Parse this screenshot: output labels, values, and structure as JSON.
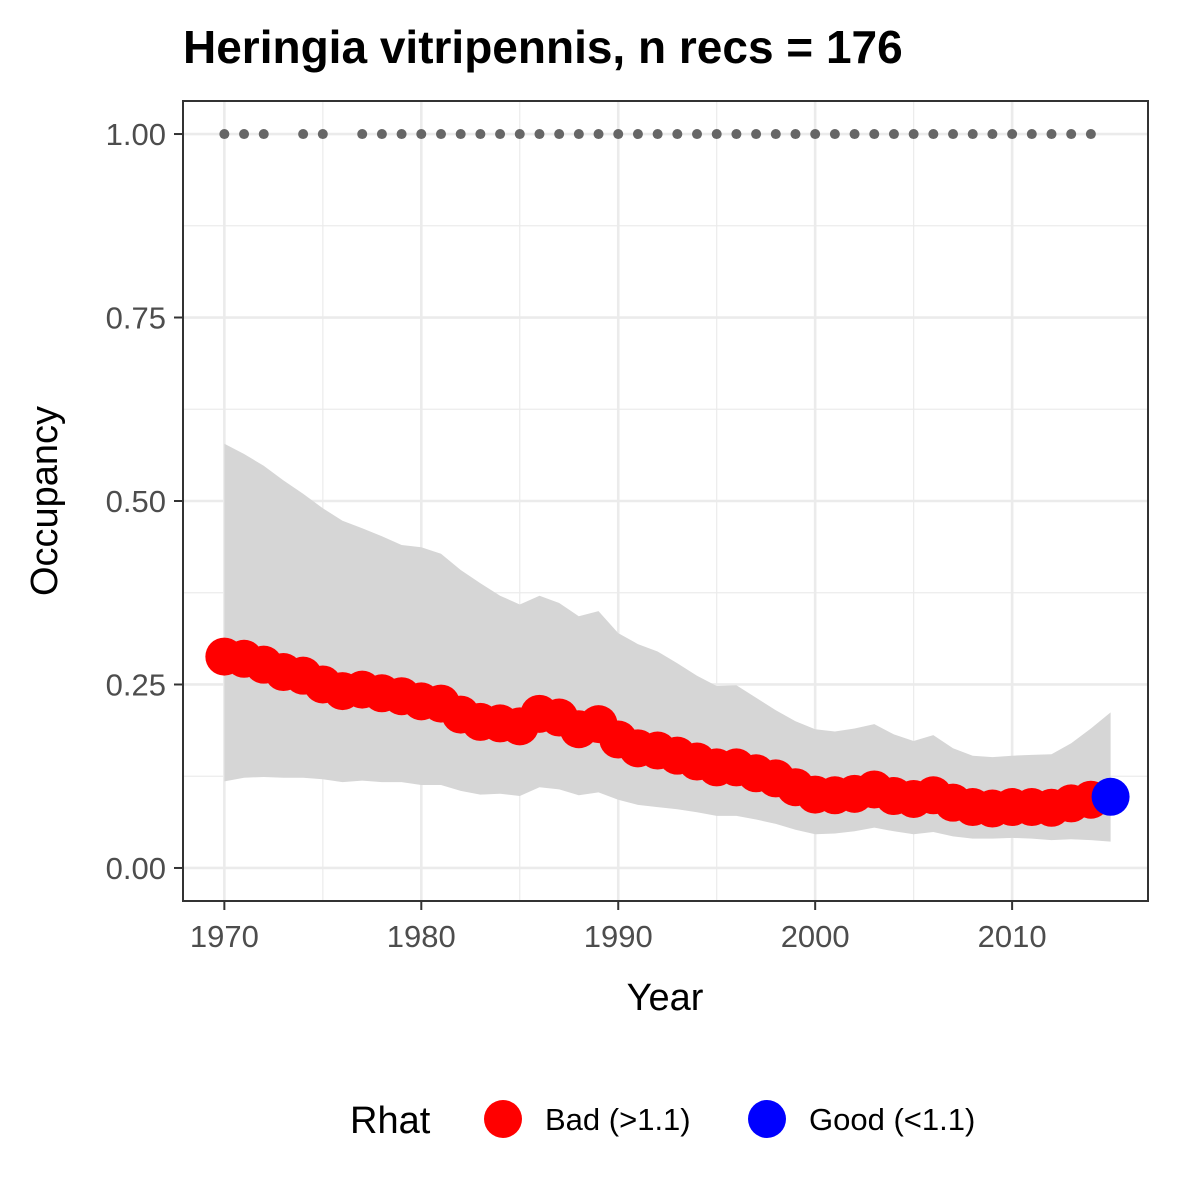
{
  "chart_data": {
    "type": "line",
    "title": "Heringia vitripennis, n recs = 176",
    "xlabel": "Year",
    "ylabel": "Occupancy",
    "xlim": [
      1967.9,
      2016.9
    ],
    "ylim": [
      -0.045,
      1.045
    ],
    "x_ticks": [
      1970,
      1980,
      1990,
      2000,
      2010
    ],
    "x_tick_labels": [
      "1970",
      "1980",
      "1990",
      "2000",
      "2010"
    ],
    "y_ticks": [
      0,
      0.25,
      0.5,
      0.75,
      1.0
    ],
    "y_tick_labels": [
      "0.00",
      "0.25",
      "0.50",
      "0.75",
      "1.00"
    ],
    "grid": true,
    "legend_position": "bottom",
    "legend": {
      "title": "Rhat",
      "items": [
        {
          "label": "Bad (>1.1)",
          "color": "#ff0000"
        },
        {
          "label": "Good (<1.1)",
          "color": "#0000ff"
        }
      ]
    },
    "x": [
      1970,
      1971,
      1972,
      1973,
      1974,
      1975,
      1976,
      1977,
      1978,
      1979,
      1980,
      1981,
      1982,
      1983,
      1984,
      1985,
      1986,
      1987,
      1988,
      1989,
      1990,
      1991,
      1992,
      1993,
      1994,
      1995,
      1996,
      1997,
      1998,
      1999,
      2000,
      2001,
      2002,
      2003,
      2004,
      2005,
      2006,
      2007,
      2008,
      2009,
      2010,
      2011,
      2012,
      2013,
      2014,
      2015
    ],
    "series": [
      {
        "name": "Occupancy",
        "values": [
          0.288,
          0.285,
          0.277,
          0.267,
          0.262,
          0.25,
          0.241,
          0.243,
          0.238,
          0.234,
          0.227,
          0.224,
          0.209,
          0.199,
          0.197,
          0.193,
          0.21,
          0.205,
          0.189,
          0.196,
          0.175,
          0.163,
          0.16,
          0.153,
          0.145,
          0.137,
          0.137,
          0.129,
          0.122,
          0.11,
          0.1,
          0.099,
          0.101,
          0.107,
          0.098,
          0.094,
          0.099,
          0.089,
          0.083,
          0.081,
          0.083,
          0.083,
          0.082,
          0.088,
          0.093,
          0.097
        ],
        "lower": [
          0.118,
          0.123,
          0.124,
          0.123,
          0.123,
          0.121,
          0.117,
          0.119,
          0.117,
          0.117,
          0.113,
          0.113,
          0.105,
          0.1,
          0.101,
          0.098,
          0.11,
          0.107,
          0.099,
          0.103,
          0.093,
          0.086,
          0.083,
          0.08,
          0.076,
          0.071,
          0.071,
          0.066,
          0.06,
          0.052,
          0.046,
          0.047,
          0.05,
          0.055,
          0.05,
          0.046,
          0.049,
          0.043,
          0.04,
          0.04,
          0.041,
          0.04,
          0.038,
          0.039,
          0.038,
          0.036
        ],
        "upper": [
          0.578,
          0.564,
          0.548,
          0.528,
          0.51,
          0.49,
          0.473,
          0.463,
          0.452,
          0.44,
          0.437,
          0.428,
          0.406,
          0.388,
          0.371,
          0.359,
          0.371,
          0.361,
          0.343,
          0.35,
          0.32,
          0.305,
          0.295,
          0.279,
          0.262,
          0.248,
          0.249,
          0.232,
          0.215,
          0.2,
          0.189,
          0.186,
          0.19,
          0.196,
          0.182,
          0.173,
          0.181,
          0.163,
          0.153,
          0.151,
          0.153,
          0.154,
          0.155,
          0.17,
          0.19,
          0.212
        ],
        "rhat": [
          "Bad",
          "Bad",
          "Bad",
          "Bad",
          "Bad",
          "Bad",
          "Bad",
          "Bad",
          "Bad",
          "Bad",
          "Bad",
          "Bad",
          "Bad",
          "Bad",
          "Bad",
          "Bad",
          "Bad",
          "Bad",
          "Bad",
          "Bad",
          "Bad",
          "Bad",
          "Bad",
          "Bad",
          "Bad",
          "Bad",
          "Bad",
          "Bad",
          "Bad",
          "Bad",
          "Bad",
          "Bad",
          "Bad",
          "Bad",
          "Bad",
          "Bad",
          "Bad",
          "Bad",
          "Bad",
          "Bad",
          "Bad",
          "Bad",
          "Bad",
          "Bad",
          "Bad",
          "Good"
        ]
      }
    ],
    "record_years": [
      1970,
      1971,
      1972,
      1974,
      1975,
      1977,
      1978,
      1979,
      1980,
      1981,
      1982,
      1983,
      1984,
      1985,
      1986,
      1987,
      1988,
      1989,
      1990,
      1991,
      1992,
      1993,
      1994,
      1995,
      1996,
      1997,
      1998,
      1999,
      2000,
      2001,
      2002,
      2003,
      2004,
      2005,
      2006,
      2007,
      2008,
      2009,
      2010,
      2011,
      2012,
      2013,
      2014
    ],
    "record_y": 1.0,
    "colors": {
      "bad": "#ff0000",
      "good": "#0000ff",
      "ribbon": "#d6d6d6",
      "record_dot": "#666666",
      "grid": "#ebebeb",
      "panel_border": "#333333"
    }
  }
}
